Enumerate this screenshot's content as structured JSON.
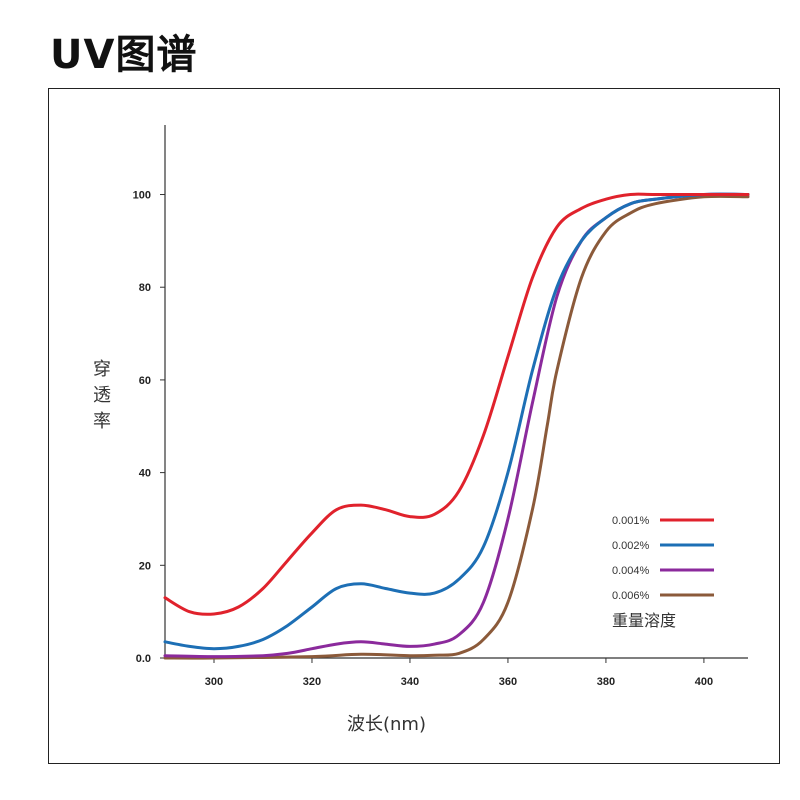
{
  "page_title": "UV图谱",
  "chart_data": {
    "type": "line",
    "title": "",
    "xlabel": "波长(nm)",
    "ylabel": "穿透率",
    "xlim": [
      290,
      409
    ],
    "ylim": [
      0,
      115
    ],
    "x_ticks": [
      300,
      320,
      340,
      360,
      380,
      400
    ],
    "y_ticks": [
      0,
      20,
      40,
      60,
      80,
      100
    ],
    "y_tick_labels": [
      "0.0",
      "20",
      "40",
      "60",
      "80",
      "100"
    ],
    "grid": false,
    "legend_position": "bottom-right",
    "legend_title": "重量溶度",
    "series": [
      {
        "name": "0.001%",
        "color": "#e0222c",
        "points": [
          [
            290,
            13
          ],
          [
            295,
            10
          ],
          [
            300,
            9.5
          ],
          [
            305,
            11
          ],
          [
            310,
            15
          ],
          [
            315,
            21
          ],
          [
            320,
            27
          ],
          [
            325,
            32
          ],
          [
            330,
            33
          ],
          [
            335,
            32
          ],
          [
            340,
            30.5
          ],
          [
            345,
            31
          ],
          [
            350,
            36
          ],
          [
            355,
            48
          ],
          [
            360,
            65
          ],
          [
            365,
            82
          ],
          [
            370,
            93
          ],
          [
            375,
            97
          ],
          [
            380,
            99
          ],
          [
            385,
            100
          ],
          [
            390,
            100
          ],
          [
            400,
            100
          ],
          [
            409,
            100
          ]
        ]
      },
      {
        "name": "0.002%",
        "color": "#1d6fb5",
        "points": [
          [
            290,
            3.5
          ],
          [
            295,
            2.5
          ],
          [
            300,
            2
          ],
          [
            305,
            2.5
          ],
          [
            310,
            4
          ],
          [
            315,
            7
          ],
          [
            320,
            11
          ],
          [
            325,
            15
          ],
          [
            330,
            16
          ],
          [
            335,
            15
          ],
          [
            340,
            14
          ],
          [
            345,
            14
          ],
          [
            350,
            17
          ],
          [
            355,
            24
          ],
          [
            360,
            40
          ],
          [
            365,
            62
          ],
          [
            370,
            80
          ],
          [
            375,
            90
          ],
          [
            380,
            95
          ],
          [
            385,
            98
          ],
          [
            390,
            99
          ],
          [
            400,
            100
          ],
          [
            409,
            100
          ]
        ]
      },
      {
        "name": "0.004%",
        "color": "#8b2a9c",
        "points": [
          [
            290,
            0.5
          ],
          [
            300,
            0.3
          ],
          [
            310,
            0.5
          ],
          [
            315,
            1
          ],
          [
            320,
            2
          ],
          [
            325,
            3
          ],
          [
            330,
            3.5
          ],
          [
            335,
            3
          ],
          [
            340,
            2.5
          ],
          [
            345,
            3
          ],
          [
            350,
            5
          ],
          [
            355,
            12
          ],
          [
            360,
            30
          ],
          [
            365,
            55
          ],
          [
            370,
            78
          ],
          [
            375,
            90
          ],
          [
            380,
            95
          ],
          [
            385,
            98
          ],
          [
            390,
            99
          ],
          [
            400,
            100
          ],
          [
            409,
            100
          ]
        ]
      },
      {
        "name": "0.006%",
        "color": "#8b5a3a",
        "points": [
          [
            290,
            0
          ],
          [
            300,
            0
          ],
          [
            320,
            0.3
          ],
          [
            330,
            0.8
          ],
          [
            340,
            0.5
          ],
          [
            345,
            0.6
          ],
          [
            350,
            1
          ],
          [
            355,
            4
          ],
          [
            360,
            12
          ],
          [
            365,
            32
          ],
          [
            368,
            50
          ],
          [
            370,
            62
          ],
          [
            375,
            82
          ],
          [
            380,
            92
          ],
          [
            385,
            96
          ],
          [
            390,
            98
          ],
          [
            400,
            99.5
          ],
          [
            409,
            99.5
          ]
        ]
      }
    ]
  }
}
